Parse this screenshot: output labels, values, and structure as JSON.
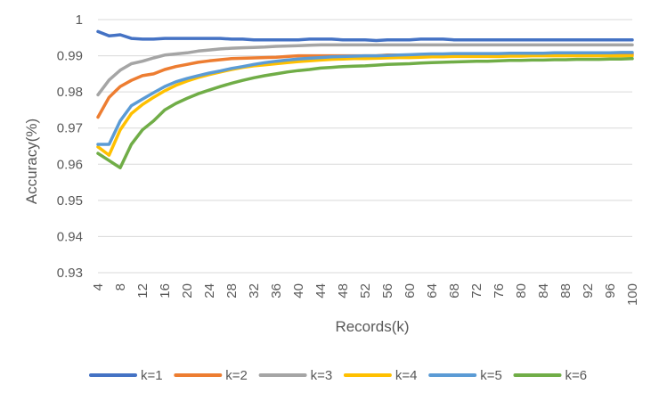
{
  "chart_data": {
    "type": "line",
    "xlabel": "Records(k)",
    "ylabel": "Accuracy(%)",
    "ylim": [
      0.93,
      1
    ],
    "yticks": [
      "0.93",
      "0.94",
      "0.95",
      "0.96",
      "0.97",
      "0.98",
      "0.99",
      "1"
    ],
    "xticks": [
      "4",
      "8",
      "12",
      "16",
      "20",
      "24",
      "28",
      "32",
      "36",
      "40",
      "44",
      "48",
      "52",
      "56",
      "60",
      "64",
      "68",
      "72",
      "76",
      "80",
      "84",
      "88",
      "92",
      "96",
      "100"
    ],
    "x": [
      4,
      6,
      8,
      10,
      12,
      14,
      16,
      18,
      20,
      22,
      24,
      26,
      28,
      30,
      32,
      34,
      36,
      38,
      40,
      42,
      44,
      46,
      48,
      50,
      52,
      54,
      56,
      58,
      60,
      62,
      64,
      66,
      68,
      70,
      72,
      74,
      76,
      78,
      80,
      82,
      84,
      86,
      88,
      90,
      92,
      94,
      96,
      98,
      100
    ],
    "grid": true,
    "legend_position": "bottom",
    "series": [
      {
        "name": "k=1",
        "color": "#4472c4",
        "values": [
          0.9967,
          0.9955,
          0.9958,
          0.9948,
          0.9946,
          0.9946,
          0.9948,
          0.9948,
          0.9948,
          0.9948,
          0.9948,
          0.9948,
          0.9946,
          0.9946,
          0.9944,
          0.9944,
          0.9944,
          0.9944,
          0.9944,
          0.9946,
          0.9946,
          0.9946,
          0.9944,
          0.9944,
          0.9944,
          0.9942,
          0.9944,
          0.9944,
          0.9944,
          0.9946,
          0.9946,
          0.9946,
          0.9944,
          0.9944,
          0.9944,
          0.9944,
          0.9944,
          0.9944,
          0.9944,
          0.9944,
          0.9944,
          0.9944,
          0.9944,
          0.9944,
          0.9944,
          0.9944,
          0.9944,
          0.9944,
          0.9944
        ]
      },
      {
        "name": "k=2",
        "color": "#ed7d31",
        "values": [
          0.973,
          0.9785,
          0.9815,
          0.9832,
          0.9845,
          0.985,
          0.9862,
          0.987,
          0.9876,
          0.9882,
          0.9886,
          0.9889,
          0.9892,
          0.9893,
          0.9894,
          0.9895,
          0.9896,
          0.9898,
          0.99,
          0.99,
          0.99,
          0.99,
          0.99,
          0.99,
          0.99,
          0.99,
          0.9902,
          0.9902,
          0.9902,
          0.9902,
          0.9902,
          0.9902,
          0.9902,
          0.9902,
          0.9902,
          0.9902,
          0.9902,
          0.9902,
          0.9902,
          0.9904,
          0.9904,
          0.9904,
          0.9904,
          0.9904,
          0.9904,
          0.9904,
          0.9904,
          0.9904,
          0.9904
        ]
      },
      {
        "name": "k=3",
        "color": "#a5a5a5",
        "values": [
          0.9792,
          0.9833,
          0.986,
          0.9878,
          0.9885,
          0.9894,
          0.9902,
          0.9905,
          0.9908,
          0.9913,
          0.9916,
          0.9919,
          0.9921,
          0.9922,
          0.9923,
          0.9924,
          0.9926,
          0.9927,
          0.9928,
          0.9929,
          0.993,
          0.993,
          0.993,
          0.993,
          0.993,
          0.993,
          0.993,
          0.993,
          0.993,
          0.993,
          0.993,
          0.993,
          0.993,
          0.993,
          0.993,
          0.993,
          0.993,
          0.993,
          0.993,
          0.993,
          0.993,
          0.993,
          0.993,
          0.993,
          0.993,
          0.993,
          0.993,
          0.993,
          0.993
        ]
      },
      {
        "name": "k=4",
        "color": "#ffc000",
        "values": [
          0.9648,
          0.9625,
          0.9695,
          0.974,
          0.9765,
          0.9785,
          0.9803,
          0.9818,
          0.983,
          0.984,
          0.9848,
          0.9855,
          0.9862,
          0.9868,
          0.9872,
          0.9875,
          0.9878,
          0.9881,
          0.9884,
          0.9886,
          0.9888,
          0.989,
          0.9891,
          0.9892,
          0.9892,
          0.9893,
          0.9894,
          0.9895,
          0.9895,
          0.9896,
          0.9897,
          0.9897,
          0.9898,
          0.9898,
          0.9898,
          0.9898,
          0.9898,
          0.9899,
          0.9899,
          0.99,
          0.99,
          0.99,
          0.99,
          0.99,
          0.99,
          0.99,
          0.99,
          0.99,
          0.99
        ]
      },
      {
        "name": "k=5",
        "color": "#5b9bd5",
        "values": [
          0.9655,
          0.9655,
          0.972,
          0.9762,
          0.978,
          0.9798,
          0.9815,
          0.9828,
          0.9837,
          0.9845,
          0.9852,
          0.9858,
          0.9865,
          0.987,
          0.9876,
          0.9881,
          0.9885,
          0.9888,
          0.9891,
          0.9893,
          0.9895,
          0.9897,
          0.9898,
          0.9899,
          0.99,
          0.99,
          0.9901,
          0.9902,
          0.9903,
          0.9904,
          0.9905,
          0.9905,
          0.9906,
          0.9906,
          0.9906,
          0.9906,
          0.9906,
          0.9907,
          0.9907,
          0.9907,
          0.9907,
          0.9908,
          0.9908,
          0.9908,
          0.9908,
          0.9908,
          0.9908,
          0.9909,
          0.9909
        ]
      },
      {
        "name": "k=6",
        "color": "#70ad47",
        "values": [
          0.963,
          0.961,
          0.959,
          0.9655,
          0.9695,
          0.972,
          0.975,
          0.9768,
          0.9782,
          0.9795,
          0.9805,
          0.9815,
          0.9824,
          0.9832,
          0.9839,
          0.9845,
          0.985,
          0.9855,
          0.9859,
          0.9862,
          0.9866,
          0.9868,
          0.987,
          0.9871,
          0.9872,
          0.9874,
          0.9876,
          0.9877,
          0.9878,
          0.988,
          0.9881,
          0.9882,
          0.9883,
          0.9884,
          0.9885,
          0.9885,
          0.9886,
          0.9887,
          0.9887,
          0.9888,
          0.9888,
          0.9889,
          0.9889,
          0.989,
          0.989,
          0.989,
          0.9891,
          0.9891,
          0.9892
        ]
      }
    ]
  }
}
